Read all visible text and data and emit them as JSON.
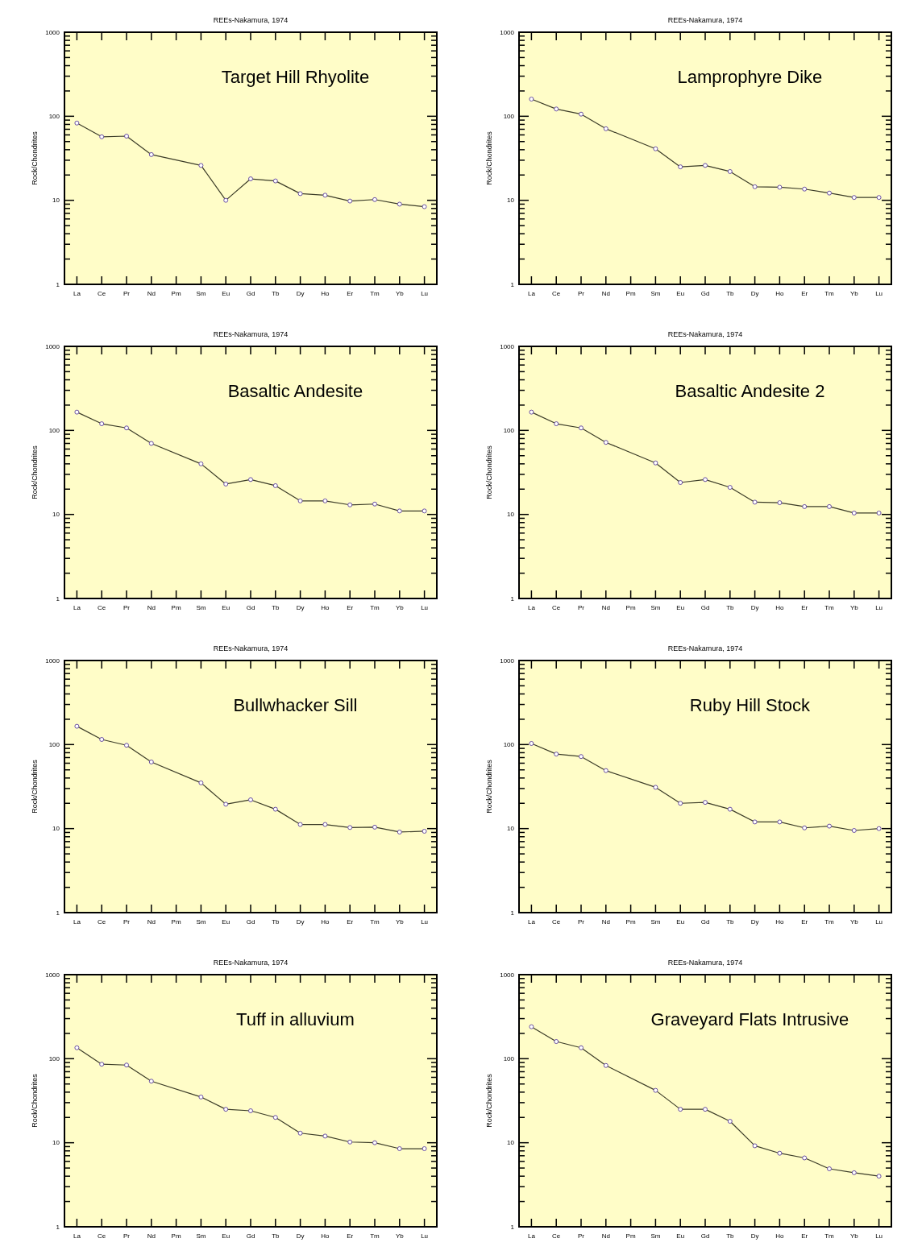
{
  "chart_data": [
    {
      "type": "line",
      "title": "REEs-Nakamura, 1974",
      "ylabel": "Rock/Chondrites",
      "annotations": [
        "Target Hill Rhyolite"
      ],
      "categories": [
        "La",
        "Ce",
        "Pr",
        "Nd",
        "Pm",
        "Sm",
        "Eu",
        "Gd",
        "Tb",
        "Dy",
        "Ho",
        "Er",
        "Tm",
        "Yb",
        "Lu"
      ],
      "log": "y",
      "grid": false,
      "marker": "circle",
      "ylim": [
        1,
        1000
      ],
      "yticks": [
        1,
        {
          "value": 2,
          "label": null
        },
        {
          "value": 3,
          "label": null
        },
        {
          "value": 4,
          "label": null
        },
        {
          "value": 5,
          "label": null
        },
        {
          "value": 6,
          "label": null
        },
        {
          "value": 7,
          "label": null
        },
        {
          "value": 8,
          "label": null
        },
        {
          "value": 9,
          "label": null
        },
        10,
        {
          "value": 20,
          "label": null
        },
        {
          "value": 30,
          "label": null
        },
        {
          "value": 40,
          "label": null
        },
        {
          "value": 50,
          "label": null
        },
        {
          "value": 60,
          "label": null
        },
        {
          "value": 70,
          "label": null
        },
        {
          "value": 80,
          "label": null
        },
        {
          "value": 90,
          "label": null
        },
        100,
        {
          "value": 200,
          "label": null
        },
        {
          "value": 300,
          "label": null
        },
        {
          "value": 400,
          "label": null
        },
        {
          "value": 500,
          "label": null
        },
        {
          "value": 600,
          "label": null
        },
        {
          "value": 700,
          "label": null
        },
        {
          "value": 800,
          "label": null
        },
        {
          "value": 900,
          "label": null
        },
        1000
      ],
      "series": [
        {
          "color": "#3c3c28",
          "values": [
            83,
            57,
            58,
            35,
            null,
            26,
            10,
            18,
            17,
            12,
            11.5,
            9.8,
            10.2,
            9,
            8.4
          ]
        }
      ]
    },
    {
      "type": "line",
      "title": "REEs-Nakamura, 1974",
      "ylabel": "Rock/Chondrites",
      "annotations": [
        "Lamprophyre Dike"
      ],
      "categories": [
        "La",
        "Ce",
        "Pr",
        "Nd",
        "Pm",
        "Sm",
        "Eu",
        "Gd",
        "Tb",
        "Dy",
        "Ho",
        "Er",
        "Tm",
        "Yb",
        "Lu"
      ],
      "log": "y",
      "grid": false,
      "marker": "circle",
      "ylim": [
        1,
        1000
      ],
      "yticks": [
        1,
        {
          "value": 2,
          "label": null
        },
        {
          "value": 3,
          "label": null
        },
        {
          "value": 4,
          "label": null
        },
        {
          "value": 5,
          "label": null
        },
        {
          "value": 6,
          "label": null
        },
        {
          "value": 7,
          "label": null
        },
        {
          "value": 8,
          "label": null
        },
        {
          "value": 9,
          "label": null
        },
        10,
        {
          "value": 20,
          "label": null
        },
        {
          "value": 30,
          "label": null
        },
        {
          "value": 40,
          "label": null
        },
        {
          "value": 50,
          "label": null
        },
        {
          "value": 60,
          "label": null
        },
        {
          "value": 70,
          "label": null
        },
        {
          "value": 80,
          "label": null
        },
        {
          "value": 90,
          "label": null
        },
        100,
        {
          "value": 200,
          "label": null
        },
        {
          "value": 300,
          "label": null
        },
        {
          "value": 400,
          "label": null
        },
        {
          "value": 500,
          "label": null
        },
        {
          "value": 600,
          "label": null
        },
        {
          "value": 700,
          "label": null
        },
        {
          "value": 800,
          "label": null
        },
        {
          "value": 900,
          "label": null
        },
        1000
      ],
      "series": [
        {
          "color": "#3c3c28",
          "values": [
            160,
            122,
            106,
            71,
            null,
            41,
            25,
            26,
            22,
            14.5,
            14.3,
            13.6,
            12.2,
            10.8,
            10.8
          ]
        }
      ]
    },
    {
      "type": "line",
      "title": "REEs-Nakamura, 1974",
      "ylabel": "Rock/Chondrites",
      "annotations": [
        "Basaltic Andesite"
      ],
      "categories": [
        "La",
        "Ce",
        "Pr",
        "Nd",
        "Pm",
        "Sm",
        "Eu",
        "Gd",
        "Tb",
        "Dy",
        "Ho",
        "Er",
        "Tm",
        "Yb",
        "Lu"
      ],
      "log": "y",
      "grid": false,
      "marker": "circle",
      "ylim": [
        1,
        1000
      ],
      "yticks": [
        1,
        {
          "value": 2,
          "label": null
        },
        {
          "value": 3,
          "label": null
        },
        {
          "value": 4,
          "label": null
        },
        {
          "value": 5,
          "label": null
        },
        {
          "value": 6,
          "label": null
        },
        {
          "value": 7,
          "label": null
        },
        {
          "value": 8,
          "label": null
        },
        {
          "value": 9,
          "label": null
        },
        10,
        {
          "value": 20,
          "label": null
        },
        {
          "value": 30,
          "label": null
        },
        {
          "value": 40,
          "label": null
        },
        {
          "value": 50,
          "label": null
        },
        {
          "value": 60,
          "label": null
        },
        {
          "value": 70,
          "label": null
        },
        {
          "value": 80,
          "label": null
        },
        {
          "value": 90,
          "label": null
        },
        100,
        {
          "value": 200,
          "label": null
        },
        {
          "value": 300,
          "label": null
        },
        {
          "value": 400,
          "label": null
        },
        {
          "value": 500,
          "label": null
        },
        {
          "value": 600,
          "label": null
        },
        {
          "value": 700,
          "label": null
        },
        {
          "value": 800,
          "label": null
        },
        {
          "value": 900,
          "label": null
        },
        1000
      ],
      "series": [
        {
          "color": "#3c3c28",
          "values": [
            165,
            120,
            107,
            70,
            null,
            40,
            23,
            26,
            22,
            14.5,
            14.5,
            13,
            13.3,
            11,
            11
          ]
        }
      ]
    },
    {
      "type": "line",
      "title": "REEs-Nakamura, 1974",
      "ylabel": "Rock/Chondrites",
      "annotations": [
        "Basaltic Andesite 2"
      ],
      "categories": [
        "La",
        "Ce",
        "Pr",
        "Nd",
        "Pm",
        "Sm",
        "Eu",
        "Gd",
        "Tb",
        "Dy",
        "Ho",
        "Er",
        "Tm",
        "Yb",
        "Lu"
      ],
      "log": "y",
      "grid": false,
      "marker": "circle",
      "ylim": [
        1,
        1000
      ],
      "yticks": [
        1,
        {
          "value": 2,
          "label": null
        },
        {
          "value": 3,
          "label": null
        },
        {
          "value": 4,
          "label": null
        },
        {
          "value": 5,
          "label": null
        },
        {
          "value": 6,
          "label": null
        },
        {
          "value": 7,
          "label": null
        },
        {
          "value": 8,
          "label": null
        },
        {
          "value": 9,
          "label": null
        },
        10,
        {
          "value": 20,
          "label": null
        },
        {
          "value": 30,
          "label": null
        },
        {
          "value": 40,
          "label": null
        },
        {
          "value": 50,
          "label": null
        },
        {
          "value": 60,
          "label": null
        },
        {
          "value": 70,
          "label": null
        },
        {
          "value": 80,
          "label": null
        },
        {
          "value": 90,
          "label": null
        },
        100,
        {
          "value": 200,
          "label": null
        },
        {
          "value": 300,
          "label": null
        },
        {
          "value": 400,
          "label": null
        },
        {
          "value": 500,
          "label": null
        },
        {
          "value": 600,
          "label": null
        },
        {
          "value": 700,
          "label": null
        },
        {
          "value": 800,
          "label": null
        },
        {
          "value": 900,
          "label": null
        },
        1000
      ],
      "series": [
        {
          "color": "#3c3c28",
          "values": [
            165,
            120,
            107,
            72,
            null,
            41,
            24,
            26,
            21,
            14,
            13.8,
            12.4,
            12.4,
            10.4,
            10.4
          ]
        }
      ]
    },
    {
      "type": "line",
      "title": "REEs-Nakamura, 1974",
      "ylabel": "Rock/Chondrites",
      "annotations": [
        "Bullwhacker Sill"
      ],
      "categories": [
        "La",
        "Ce",
        "Pr",
        "Nd",
        "Pm",
        "Sm",
        "Eu",
        "Gd",
        "Tb",
        "Dy",
        "Ho",
        "Er",
        "Tm",
        "Yb",
        "Lu"
      ],
      "log": "y",
      "grid": false,
      "marker": "circle",
      "ylim": [
        1,
        1000
      ],
      "yticks": [
        1,
        {
          "value": 2,
          "label": null
        },
        {
          "value": 3,
          "label": null
        },
        {
          "value": 4,
          "label": null
        },
        {
          "value": 5,
          "label": null
        },
        {
          "value": 6,
          "label": null
        },
        {
          "value": 7,
          "label": null
        },
        {
          "value": 8,
          "label": null
        },
        {
          "value": 9,
          "label": null
        },
        10,
        {
          "value": 20,
          "label": null
        },
        {
          "value": 30,
          "label": null
        },
        {
          "value": 40,
          "label": null
        },
        {
          "value": 50,
          "label": null
        },
        {
          "value": 60,
          "label": null
        },
        {
          "value": 70,
          "label": null
        },
        {
          "value": 80,
          "label": null
        },
        {
          "value": 90,
          "label": null
        },
        100,
        {
          "value": 200,
          "label": null
        },
        {
          "value": 300,
          "label": null
        },
        {
          "value": 400,
          "label": null
        },
        {
          "value": 500,
          "label": null
        },
        {
          "value": 600,
          "label": null
        },
        {
          "value": 700,
          "label": null
        },
        {
          "value": 800,
          "label": null
        },
        {
          "value": 900,
          "label": null
        },
        1000
      ],
      "series": [
        {
          "color": "#3c3c28",
          "values": [
            165,
            115,
            98,
            62,
            null,
            35,
            19.5,
            22,
            17,
            11.2,
            11.2,
            10.3,
            10.4,
            9.1,
            9.3
          ]
        }
      ]
    },
    {
      "type": "line",
      "title": "REEs-Nakamura, 1974",
      "ylabel": "Rock/Chondrites",
      "annotations": [
        "Ruby Hill Stock"
      ],
      "categories": [
        "La",
        "Ce",
        "Pr",
        "Nd",
        "Pm",
        "Sm",
        "Eu",
        "Gd",
        "Tb",
        "Dy",
        "Ho",
        "Er",
        "Tm",
        "Yb",
        "Lu"
      ],
      "log": "y",
      "grid": false,
      "marker": "circle",
      "ylim": [
        1,
        1000
      ],
      "yticks": [
        1,
        {
          "value": 2,
          "label": null
        },
        {
          "value": 3,
          "label": null
        },
        {
          "value": 4,
          "label": null
        },
        {
          "value": 5,
          "label": null
        },
        {
          "value": 6,
          "label": null
        },
        {
          "value": 7,
          "label": null
        },
        {
          "value": 8,
          "label": null
        },
        {
          "value": 9,
          "label": null
        },
        10,
        {
          "value": 20,
          "label": null
        },
        {
          "value": 30,
          "label": null
        },
        {
          "value": 40,
          "label": null
        },
        {
          "value": 50,
          "label": null
        },
        {
          "value": 60,
          "label": null
        },
        {
          "value": 70,
          "label": null
        },
        {
          "value": 80,
          "label": null
        },
        {
          "value": 90,
          "label": null
        },
        100,
        {
          "value": 200,
          "label": null
        },
        {
          "value": 300,
          "label": null
        },
        {
          "value": 400,
          "label": null
        },
        {
          "value": 500,
          "label": null
        },
        {
          "value": 600,
          "label": null
        },
        {
          "value": 700,
          "label": null
        },
        {
          "value": 800,
          "label": null
        },
        {
          "value": 900,
          "label": null
        },
        1000
      ],
      "series": [
        {
          "color": "#3c3c28",
          "values": [
            103,
            77,
            72,
            49,
            null,
            31,
            20,
            20.5,
            17,
            12,
            12,
            10.2,
            10.7,
            9.5,
            10
          ]
        }
      ]
    },
    {
      "type": "line",
      "title": "REEs-Nakamura, 1974",
      "ylabel": "Rock/Chondrites",
      "annotations": [
        "Tuff in alluvium"
      ],
      "categories": [
        "La",
        "Ce",
        "Pr",
        "Nd",
        "Pm",
        "Sm",
        "Eu",
        "Gd",
        "Tb",
        "Dy",
        "Ho",
        "Er",
        "Tm",
        "Yb",
        "Lu"
      ],
      "log": "y",
      "grid": false,
      "marker": "circle",
      "ylim": [
        1,
        1000
      ],
      "yticks": [
        1,
        {
          "value": 2,
          "label": null
        },
        {
          "value": 3,
          "label": null
        },
        {
          "value": 4,
          "label": null
        },
        {
          "value": 5,
          "label": null
        },
        {
          "value": 6,
          "label": null
        },
        {
          "value": 7,
          "label": null
        },
        {
          "value": 8,
          "label": null
        },
        {
          "value": 9,
          "label": null
        },
        10,
        {
          "value": 20,
          "label": null
        },
        {
          "value": 30,
          "label": null
        },
        {
          "value": 40,
          "label": null
        },
        {
          "value": 50,
          "label": null
        },
        {
          "value": 60,
          "label": null
        },
        {
          "value": 70,
          "label": null
        },
        {
          "value": 80,
          "label": null
        },
        {
          "value": 90,
          "label": null
        },
        100,
        {
          "value": 200,
          "label": null
        },
        {
          "value": 300,
          "label": null
        },
        {
          "value": 400,
          "label": null
        },
        {
          "value": 500,
          "label": null
        },
        {
          "value": 600,
          "label": null
        },
        {
          "value": 700,
          "label": null
        },
        {
          "value": 800,
          "label": null
        },
        {
          "value": 900,
          "label": null
        },
        1000
      ],
      "series": [
        {
          "color": "#3c3c28",
          "values": [
            135,
            86,
            84,
            54,
            null,
            35,
            25,
            24,
            20,
            13,
            12,
            10.2,
            10,
            8.5,
            8.5
          ]
        }
      ]
    },
    {
      "type": "line",
      "title": "REEs-Nakamura, 1974",
      "ylabel": "Rock/Chondrites",
      "annotations": [
        "Graveyard Flats Intrusive"
      ],
      "categories": [
        "La",
        "Ce",
        "Pr",
        "Nd",
        "Pm",
        "Sm",
        "Eu",
        "Gd",
        "Tb",
        "Dy",
        "Ho",
        "Er",
        "Tm",
        "Yb",
        "Lu"
      ],
      "log": "y",
      "grid": false,
      "marker": "circle",
      "ylim": [
        1,
        1000
      ],
      "yticks": [
        1,
        {
          "value": 2,
          "label": null
        },
        {
          "value": 3,
          "label": null
        },
        {
          "value": 4,
          "label": null
        },
        {
          "value": 5,
          "label": null
        },
        {
          "value": 6,
          "label": null
        },
        {
          "value": 7,
          "label": null
        },
        {
          "value": 8,
          "label": null
        },
        {
          "value": 9,
          "label": null
        },
        10,
        {
          "value": 20,
          "label": null
        },
        {
          "value": 30,
          "label": null
        },
        {
          "value": 40,
          "label": null
        },
        {
          "value": 50,
          "label": null
        },
        {
          "value": 60,
          "label": null
        },
        {
          "value": 70,
          "label": null
        },
        {
          "value": 80,
          "label": null
        },
        {
          "value": 90,
          "label": null
        },
        100,
        {
          "value": 200,
          "label": null
        },
        {
          "value": 300,
          "label": null
        },
        {
          "value": 400,
          "label": null
        },
        {
          "value": 500,
          "label": null
        },
        {
          "value": 600,
          "label": null
        },
        {
          "value": 700,
          "label": null
        },
        {
          "value": 800,
          "label": null
        },
        {
          "value": 900,
          "label": null
        },
        1000
      ],
      "series": [
        {
          "color": "#3c3c28",
          "values": [
            240,
            160,
            135,
            83,
            null,
            42,
            25,
            25,
            18,
            9.2,
            7.5,
            6.6,
            4.9,
            4.4,
            4.0
          ]
        }
      ]
    }
  ]
}
